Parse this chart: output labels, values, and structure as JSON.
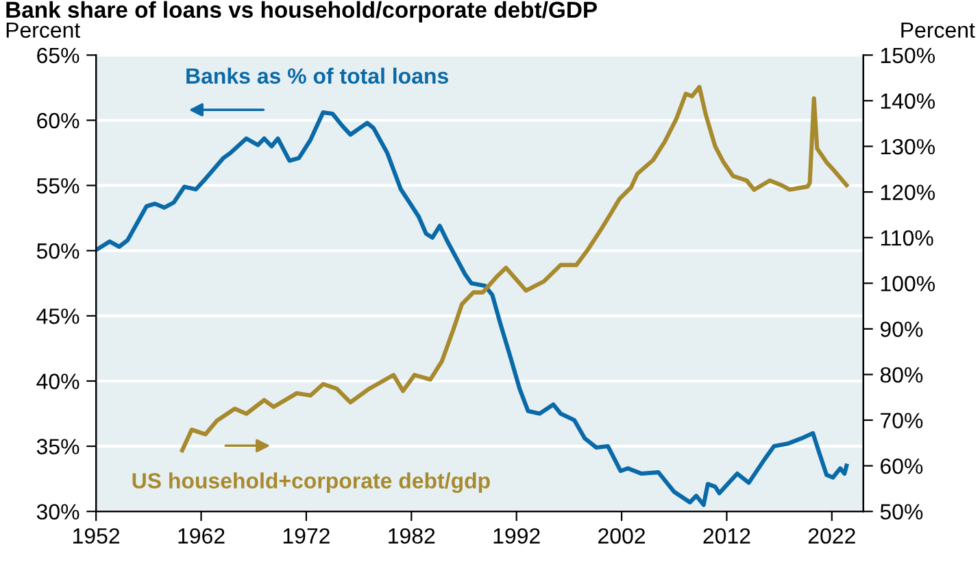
{
  "chart_data": {
    "type": "line",
    "title": "Bank share of loans vs household/corporate debt/GDP",
    "ylabel": "Percent",
    "y2label": "Percent",
    "xlim": [
      1952,
      2025
    ],
    "xticks": [
      1952,
      1962,
      1972,
      1982,
      1992,
      2002,
      2012,
      2022
    ],
    "ylim": [
      30,
      65
    ],
    "yticks": [
      {
        "value": 30,
        "label": "30%"
      },
      {
        "value": 35,
        "label": "35%"
      },
      {
        "value": 40,
        "label": "40%"
      },
      {
        "value": 45,
        "label": "45%"
      },
      {
        "value": 50,
        "label": "50%"
      },
      {
        "value": 55,
        "label": "55%"
      },
      {
        "value": 60,
        "label": "60%"
      },
      {
        "value": 65,
        "label": "65%"
      }
    ],
    "y2lim": [
      50,
      150
    ],
    "y2ticks": [
      {
        "value": 50,
        "label": "50%"
      },
      {
        "value": 60,
        "label": "60%"
      },
      {
        "value": 70,
        "label": "70%"
      },
      {
        "value": 80,
        "label": "80%"
      },
      {
        "value": 90,
        "label": "90%"
      },
      {
        "value": 100,
        "label": "100%"
      },
      {
        "value": 110,
        "label": "110%"
      },
      {
        "value": 120,
        "label": "120%"
      },
      {
        "value": 130,
        "label": "130%"
      },
      {
        "value": 140,
        "label": "140%"
      },
      {
        "value": 150,
        "label": "150%"
      }
    ],
    "grid": "y",
    "legend": "bottom left",
    "series": [
      {
        "name": "Banks as % of total loans",
        "color": "#0a6aa8",
        "axis": "y",
        "x": [
          1952.1,
          1953.3,
          1954.2,
          1955.0,
          1956.8,
          1957.6,
          1958.5,
          1959.4,
          1960.4,
          1961.5,
          1962.4,
          1964.1,
          1964.8,
          1966.3,
          1967.4,
          1968.0,
          1968.7,
          1969.3,
          1970.4,
          1971.3,
          1972.4,
          1973.6,
          1974.5,
          1975.4,
          1976.2,
          1977.8,
          1978.4,
          1979.7,
          1981.0,
          1981.9,
          1982.7,
          1983.4,
          1984.0,
          1984.7,
          1985.5,
          1987.1,
          1987.7,
          1989.0,
          1989.7,
          1990.5,
          1991.4,
          1992.3,
          1993.1,
          1994.2,
          1995.5,
          1996.2,
          1997.5,
          1998.5,
          1999.6,
          2000.7,
          2001.9,
          2002.6,
          2003.9,
          2005.5,
          2007.0,
          2008.5,
          2009.1,
          2009.8,
          2010.2,
          2010.9,
          2011.3,
          2012.2,
          2013.0,
          2014.1,
          2015.6,
          2016.5,
          2017.8,
          2019.1,
          2020.2,
          2020.8,
          2021.5,
          2022.1,
          2022.8,
          2023.2,
          2023.4
        ],
        "values": [
          50.1,
          50.7,
          50.3,
          50.8,
          53.4,
          53.6,
          53.3,
          53.7,
          54.9,
          54.7,
          55.5,
          57.1,
          57.5,
          58.6,
          58.1,
          58.6,
          58.0,
          58.6,
          56.9,
          57.1,
          58.5,
          60.6,
          60.5,
          59.6,
          58.9,
          59.8,
          59.4,
          57.5,
          54.7,
          53.6,
          52.6,
          51.3,
          51.0,
          51.9,
          50.6,
          48.2,
          47.5,
          47.3,
          46.6,
          44.3,
          41.9,
          39.4,
          37.7,
          37.5,
          38.2,
          37.5,
          37.0,
          35.6,
          34.9,
          35.0,
          33.1,
          33.3,
          32.9,
          33.0,
          31.5,
          30.7,
          31.2,
          30.5,
          32.1,
          31.9,
          31.4,
          32.2,
          32.9,
          32.2,
          34.0,
          35.0,
          35.2,
          35.6,
          36.0,
          34.5,
          32.8,
          32.6,
          33.3,
          32.9,
          33.5
        ]
      },
      {
        "name": "US household+corporate debt/gdp",
        "color": "#a88a2e",
        "axis": "y2",
        "x": [
          1960.2,
          1961.1,
          1962.4,
          1963.5,
          1965.2,
          1966.3,
          1968.0,
          1968.9,
          1971.1,
          1972.4,
          1973.6,
          1974.9,
          1976.2,
          1978.0,
          1980.3,
          1981.2,
          1982.3,
          1983.8,
          1984.9,
          1986.0,
          1986.8,
          1987.9,
          1988.8,
          1990.1,
          1991.0,
          1992.9,
          1994.6,
          1996.2,
          1997.7,
          1998.8,
          2000.1,
          2000.9,
          2001.8,
          2002.9,
          2003.5,
          2005.0,
          2006.1,
          2007.2,
          2008.1,
          2008.7,
          2009.4,
          2010.0,
          2010.9,
          2011.7,
          2012.6,
          2013.9,
          2014.6,
          2016.1,
          2017.2,
          2018.0,
          2019.7,
          2019.9,
          2020.3,
          2020.6,
          2021.5,
          2022.1,
          2023.4
        ],
        "values": [
          63.4,
          67.9,
          66.9,
          69.9,
          72.5,
          71.4,
          74.4,
          72.9,
          75.9,
          75.4,
          77.9,
          76.9,
          73.9,
          76.9,
          79.9,
          76.4,
          79.9,
          78.9,
          82.9,
          89.9,
          95.4,
          98.0,
          98.0,
          101.4,
          103.4,
          98.4,
          100.4,
          104.0,
          104.0,
          107.4,
          112.0,
          115.0,
          118.5,
          121.0,
          124.0,
          127.0,
          131.0,
          136.0,
          141.5,
          141.0,
          143.0,
          137.0,
          130.0,
          126.5,
          123.5,
          122.5,
          120.5,
          122.5,
          121.5,
          120.5,
          121.2,
          122.0,
          140.5,
          129.5,
          126.5,
          125.0,
          121.5
        ]
      }
    ]
  }
}
